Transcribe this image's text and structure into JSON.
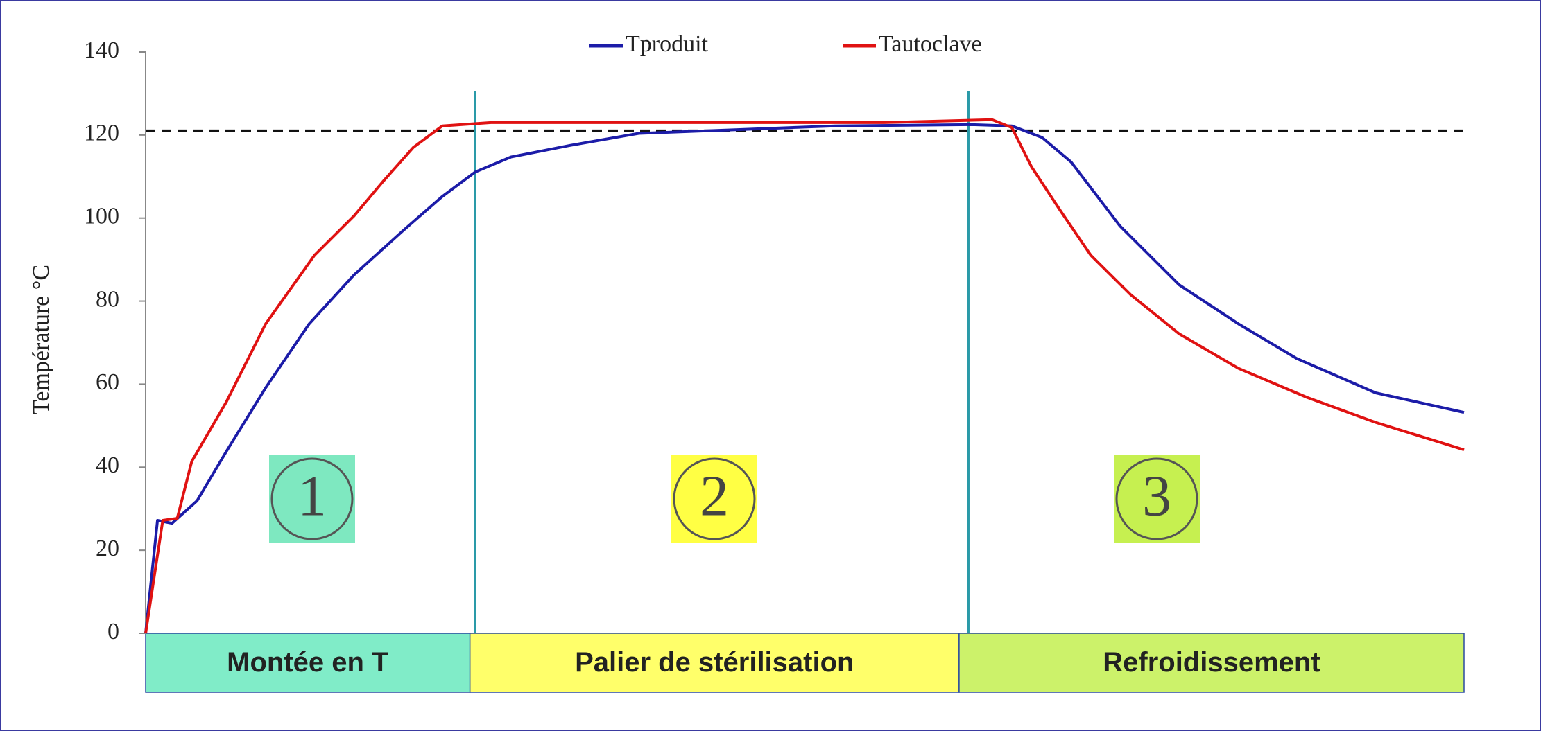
{
  "chart_data": {
    "type": "line",
    "y_label": "Température °C",
    "ylim": [
      0,
      140
    ],
    "yticks": [
      0,
      20,
      40,
      60,
      80,
      100,
      120,
      140
    ],
    "xlim": [
      0,
      100
    ],
    "reference_line": 121,
    "phase_lines": [
      25,
      62.4
    ],
    "legend": "top",
    "series": [
      {
        "name": "Tproduit",
        "color": "#1c1ca8",
        "x": [
          0,
          0.9,
          2,
          3.9,
          6.1,
          9.1,
          12.4,
          15.8,
          19.5,
          22.5,
          25,
          27.7,
          32.2,
          37.4,
          44.9,
          52.3,
          62.7,
          65.7,
          68,
          70.2,
          73.9,
          78.4,
          82.9,
          87.3,
          93.3,
          100
        ],
        "values": [
          0,
          27.2,
          26.5,
          31.9,
          43.7,
          59.1,
          74.5,
          86.3,
          96.9,
          105.2,
          111.1,
          114.7,
          117.5,
          120.4,
          121.3,
          122.2,
          122.5,
          122.2,
          119.4,
          113.5,
          98.1,
          83.9,
          74.5,
          66.2,
          57.9,
          53.2
        ]
      },
      {
        "name": "Tautoclave",
        "color": "#e01212",
        "x": [
          0,
          1.3,
          2.4,
          3.5,
          6.1,
          9.1,
          12.8,
          15.8,
          18,
          20.3,
          22.5,
          26.2,
          41.1,
          56,
          64.2,
          65.7,
          67.2,
          69.4,
          71.7,
          74.7,
          78.4,
          82.9,
          88.1,
          93.3,
          100
        ],
        "values": [
          0,
          27.2,
          27.7,
          41.4,
          55.6,
          74.5,
          91,
          100.5,
          108.8,
          117,
          122.2,
          123,
          123,
          123,
          123.7,
          121.8,
          112.3,
          101.7,
          91,
          81.6,
          72.1,
          63.8,
          56.8,
          50.8,
          44.2
        ]
      }
    ],
    "phases": [
      {
        "label": "Montée en T",
        "number": "1",
        "start": 0,
        "end": 24.6,
        "color": "#80ecc8",
        "number_color": "#7ee8c0"
      },
      {
        "label": "Palier de stérilisation",
        "number": "2",
        "start": 24.6,
        "end": 61.7,
        "color": "#ffff6a",
        "number_color": "#ffff44"
      },
      {
        "label": "Refroidissement",
        "number": "3",
        "start": 61.7,
        "end": 100,
        "color": "#ccf26a",
        "number_color": "#c6f050"
      }
    ]
  }
}
